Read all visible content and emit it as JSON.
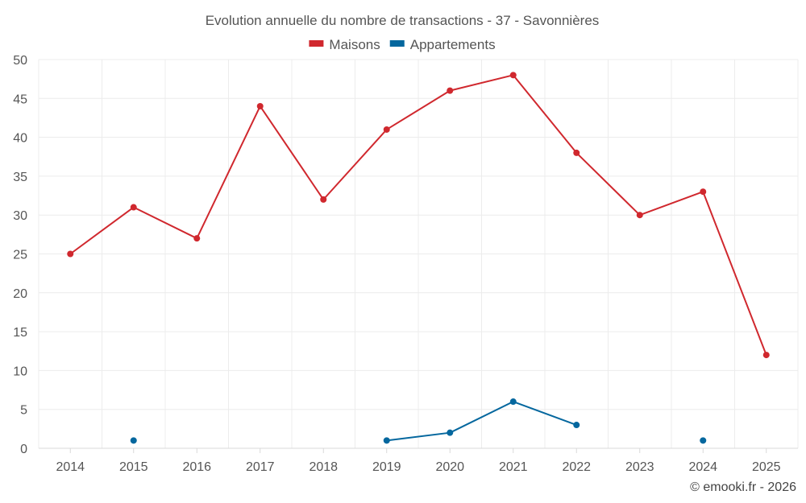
{
  "chart_data": {
    "type": "line",
    "title": "Evolution annuelle du nombre de transactions - 37 - Savonnières",
    "xlabel": "",
    "ylabel": "",
    "categories": [
      "2014",
      "2015",
      "2016",
      "2017",
      "2018",
      "2019",
      "2020",
      "2021",
      "2022",
      "2023",
      "2024",
      "2025"
    ],
    "ylim": [
      0,
      50
    ],
    "yticks": [
      0,
      5,
      10,
      15,
      20,
      25,
      30,
      35,
      40,
      45,
      50
    ],
    "grid": true,
    "legend_position": "top-center",
    "series": [
      {
        "name": "Maisons",
        "color": "#d0282e",
        "values": [
          25,
          31,
          27,
          44,
          32,
          41,
          46,
          48,
          38,
          30,
          33,
          12
        ]
      },
      {
        "name": "Appartements",
        "color": "#04679e",
        "values": [
          null,
          1,
          null,
          null,
          null,
          1,
          2,
          6,
          3,
          null,
          1,
          null
        ]
      }
    ]
  },
  "credit": "© emooki.fr - 2026"
}
